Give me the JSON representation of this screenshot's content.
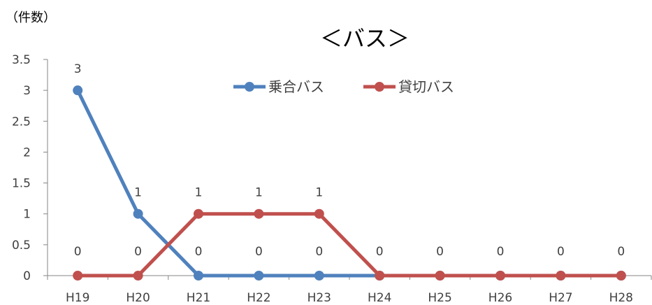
{
  "chart_data": {
    "type": "line",
    "title": "＜バス＞",
    "ylabel": "（件数）",
    "xlabel": "",
    "categories": [
      "H19",
      "H20",
      "H21",
      "H22",
      "H23",
      "H24",
      "H25",
      "H26",
      "H27",
      "H28"
    ],
    "y_ticks": [
      "0",
      "0.5",
      "1",
      "1.5",
      "2",
      "2.5",
      "3",
      "3.5"
    ],
    "ylim": [
      0,
      3.5
    ],
    "grid": false,
    "legend_position": "top-center",
    "series": [
      {
        "name": "乗合バス",
        "color": "#4f81bd",
        "values": [
          3,
          1,
          0,
          0,
          0,
          0,
          0,
          0,
          0,
          0
        ],
        "labels": [
          "3",
          "1",
          "",
          "",
          "",
          "",
          "",
          "",
          "",
          ""
        ]
      },
      {
        "name": "貸切バス",
        "color": "#c0504d",
        "values": [
          0,
          0,
          1,
          1,
          1,
          0,
          0,
          0,
          0,
          0
        ],
        "labels": [
          "0",
          "0",
          "1",
          "1",
          "1",
          "0",
          "0",
          "0",
          "0",
          "0"
        ]
      }
    ],
    "extra_labels": [
      "",
      "",
      "0",
      "0",
      "0",
      "",
      "",
      "",
      "",
      ""
    ]
  }
}
